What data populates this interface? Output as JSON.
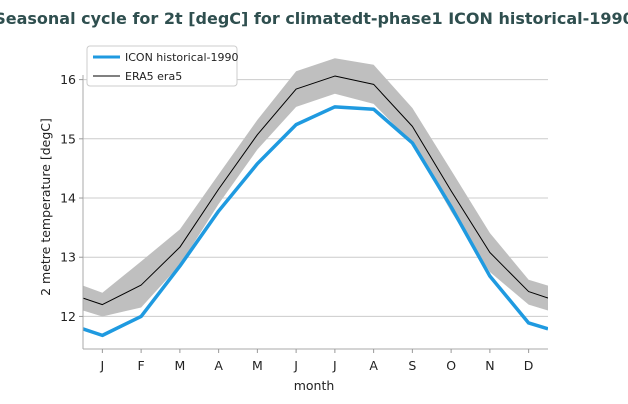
{
  "chart_data": {
    "type": "line",
    "title": "Seasonal cycle for 2t [degC] for climatedt-phase1 ICON historical-1990",
    "xlabel": "month",
    "ylabel": "2 metre temperature [degC]",
    "categories": [
      "J",
      "F",
      "M",
      "A",
      "M",
      "J",
      "J",
      "A",
      "S",
      "O",
      "N",
      "D"
    ],
    "x_range": [
      0.5,
      12.5
    ],
    "ylim": [
      11.45,
      16.5
    ],
    "yticks": [
      12,
      13,
      14,
      15,
      16
    ],
    "grid": "horizontal",
    "legend_position": "top-left",
    "series": [
      {
        "name": "ICON historical-1990",
        "color": "#1f9ae0",
        "x": [
          0.5,
          1,
          2,
          3,
          4,
          5,
          6,
          7,
          8,
          9,
          10,
          11,
          12,
          12.5
        ],
        "values": [
          11.79,
          11.68,
          12.0,
          12.85,
          13.78,
          14.58,
          15.24,
          15.54,
          15.5,
          14.93,
          13.85,
          12.68,
          11.89,
          11.79
        ]
      },
      {
        "name": "ERA5 era5",
        "color": "#000000",
        "x": [
          0.5,
          1,
          2,
          3,
          4,
          5,
          6,
          7,
          8,
          9,
          10,
          11,
          12,
          12.5
        ],
        "values": [
          12.31,
          12.2,
          12.53,
          13.17,
          14.15,
          15.07,
          15.84,
          16.06,
          15.92,
          15.21,
          14.12,
          13.08,
          12.42,
          12.31
        ],
        "band_upper": [
          12.52,
          12.4,
          12.93,
          13.47,
          14.4,
          15.32,
          16.14,
          16.36,
          16.25,
          15.52,
          14.47,
          13.41,
          12.62,
          12.52
        ],
        "band_lower": [
          12.1,
          12.0,
          12.15,
          12.87,
          13.9,
          14.82,
          15.54,
          15.76,
          15.59,
          14.92,
          13.77,
          12.75,
          12.2,
          12.1
        ],
        "band_color": "#bfbfbf"
      }
    ]
  }
}
